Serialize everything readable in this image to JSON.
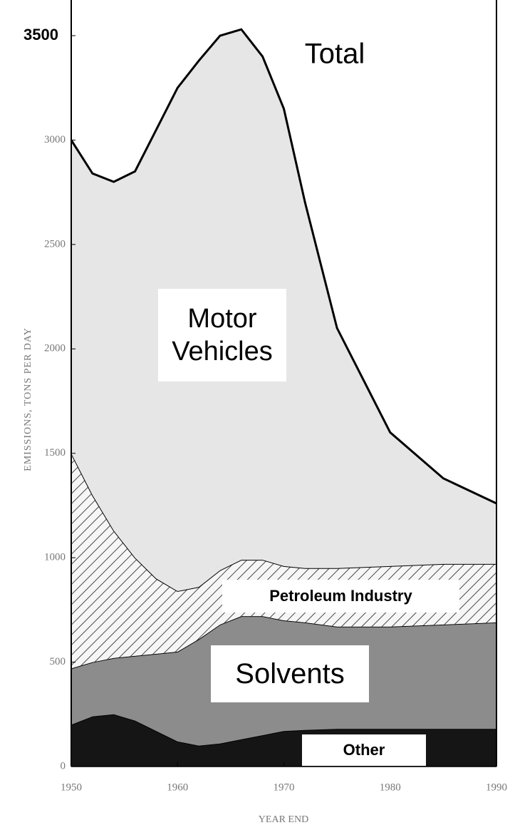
{
  "chart_data": {
    "type": "stacked_area",
    "y_label": "EMISSIONS, TONS PER DAY",
    "x_label": "YEAR END",
    "total_label": "Total",
    "x": [
      1950,
      1952,
      1954,
      1956,
      1958,
      1960,
      1962,
      1964,
      1966,
      1968,
      1970,
      1972,
      1975,
      1980,
      1985,
      1990
    ],
    "series": [
      {
        "name": "Other",
        "color": "#151515",
        "values": [
          200,
          240,
          250,
          220,
          170,
          120,
          100,
          110,
          130,
          150,
          170,
          175,
          180,
          180,
          180,
          180
        ]
      },
      {
        "name": "Solvents",
        "color": "#8c8c8c",
        "values": [
          270,
          260,
          270,
          310,
          370,
          430,
          510,
          570,
          590,
          570,
          530,
          515,
          490,
          490,
          500,
          510
        ]
      },
      {
        "name": "Petroleum Industry",
        "color": "#c4c4c4",
        "values": [
          1030,
          800,
          610,
          470,
          360,
          290,
          250,
          260,
          270,
          270,
          260,
          260,
          280,
          290,
          290,
          280
        ]
      },
      {
        "name": "Motor Vehicles",
        "color": "#e6e6e6",
        "values": [
          1500,
          1540,
          1670,
          1850,
          2150,
          2410,
          2520,
          2560,
          2540,
          2410,
          2190,
          1750,
          1150,
          640,
          410,
          290
        ]
      }
    ],
    "xlim": [
      1950,
      1990
    ],
    "xticks": [
      1950,
      1960,
      1970,
      1980,
      1990
    ],
    "ylim": [
      0,
      3500
    ],
    "yticks": [
      0,
      500,
      1000,
      1500,
      2000,
      2500,
      3000,
      3500
    ]
  }
}
